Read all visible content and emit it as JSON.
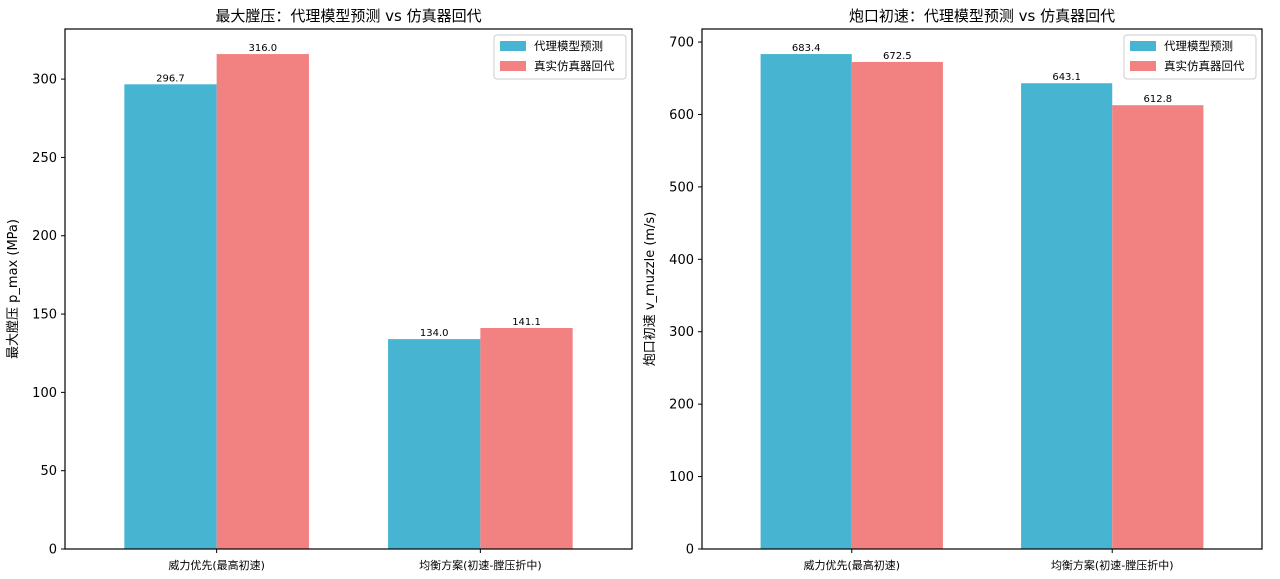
{
  "colors": {
    "surrogate": "#47b4d1",
    "simulator": "#f28181",
    "axis": "#000000"
  },
  "chart_data": [
    {
      "type": "bar",
      "title": "最大膛压：代理模型预测 vs 仿真器回代",
      "xlabel": "",
      "ylabel": "最大膛压 p_max (MPa)",
      "categories": [
        "威力优先(最高初速)",
        "均衡方案(初速-膛压折中)"
      ],
      "series": [
        {
          "name": "代理模型预测",
          "values": [
            296.7,
            134.0
          ],
          "labels": [
            "296.7",
            "134.0"
          ]
        },
        {
          "name": "真实仿真器回代",
          "values": [
            316.0,
            141.1
          ],
          "labels": [
            "316.0",
            "141.1"
          ]
        }
      ],
      "ylim": [
        0,
        332
      ],
      "yticks": [
        0,
        50,
        100,
        150,
        200,
        250,
        300
      ],
      "legend": "top-right",
      "grid": false
    },
    {
      "type": "bar",
      "title": "炮口初速：代理模型预测 vs 仿真器回代",
      "xlabel": "",
      "ylabel": "炮口初速 v_muzzle (m/s)",
      "categories": [
        "威力优先(最高初速)",
        "均衡方案(初速-膛压折中)"
      ],
      "series": [
        {
          "name": "代理模型预测",
          "values": [
            683.4,
            643.1
          ],
          "labels": [
            "683.4",
            "643.1"
          ]
        },
        {
          "name": "真实仿真器回代",
          "values": [
            672.5,
            612.8
          ],
          "labels": [
            "672.5",
            "612.8"
          ]
        }
      ],
      "ylim": [
        0,
        718
      ],
      "yticks": [
        0,
        100,
        200,
        300,
        400,
        500,
        600,
        700
      ],
      "legend": "top-right",
      "grid": false
    }
  ]
}
